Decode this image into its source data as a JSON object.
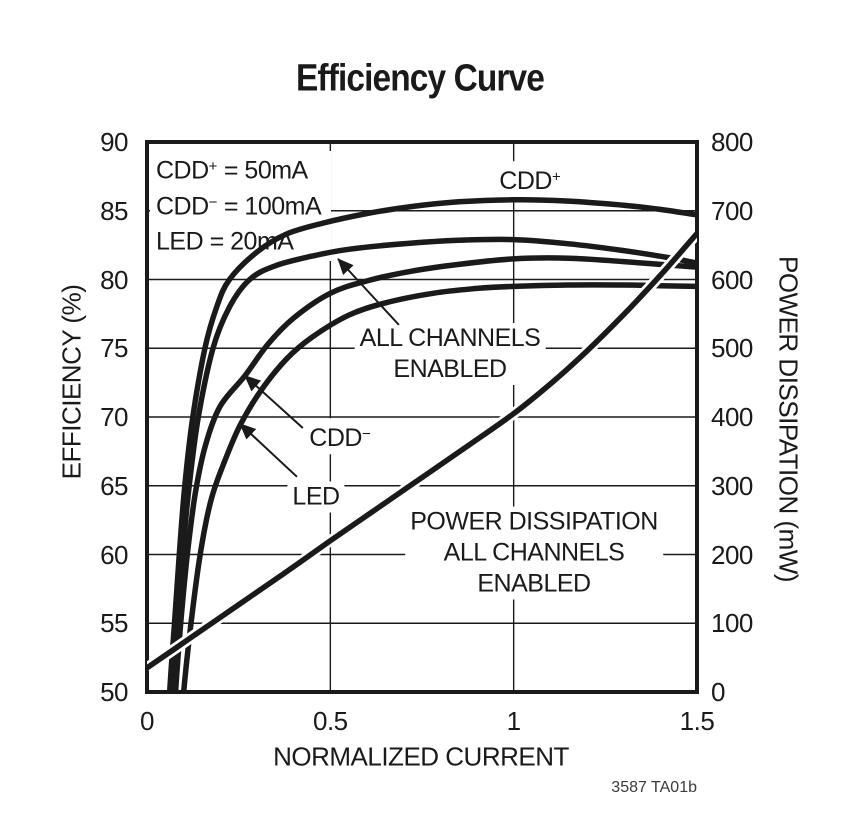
{
  "title": "Efficiency Curve",
  "footnote": "3587 TA01b",
  "colors": {
    "ink": "#1a1a1a",
    "background": "#ffffff"
  },
  "conditions": [
    {
      "base": "CDD",
      "sup": "+",
      "rest": " = 50mA"
    },
    {
      "base": "CDD",
      "sup": "−",
      "rest": " = 100mA"
    },
    {
      "base": "LED",
      "sup": "",
      "rest": " = 20mA"
    }
  ],
  "axes": {
    "x": {
      "title": "NORMALIZED CURRENT",
      "tick_labels": [
        "0",
        "0.5",
        "1",
        "1.5"
      ],
      "tick_values": [
        0,
        0.5,
        1,
        1.5
      ],
      "gridlines": [
        0.5,
        1
      ]
    },
    "y_left": {
      "title": "EFFICIENCY (%)",
      "tick_labels": [
        "90",
        "85",
        "80",
        "75",
        "70",
        "65",
        "60",
        "55",
        "50"
      ]
    },
    "y_right": {
      "title": "POWER DISSIPATION (mW)",
      "tick_labels": [
        "800",
        "700",
        "600",
        "500",
        "400",
        "300",
        "200",
        "100",
        "0"
      ]
    }
  },
  "curve_labels": {
    "cdd_plus": {
      "base": "CDD",
      "sup": "+"
    },
    "cdd_minus": {
      "base": "CDD",
      "sup": "−"
    },
    "led": "LED",
    "all_channels": [
      "ALL CHANNELS",
      "ENABLED"
    ],
    "power": [
      "POWER DISSIPATION",
      "ALL CHANNELS",
      "ENABLED"
    ]
  },
  "chart_data": {
    "type": "line",
    "title": "Efficiency Curve",
    "xlabel": "NORMALIZED CURRENT",
    "xlim": [
      0,
      1.5
    ],
    "ylabel_left": "EFFICIENCY (%)",
    "ylim_left": [
      50,
      90
    ],
    "y_left_gridline_step": 5,
    "ylabel_right": "POWER DISSIPATION (mW)",
    "ylim_right": [
      0,
      800
    ],
    "grid": true,
    "legend": "inline-annotations",
    "series": [
      {
        "name": "CDD+",
        "axis": "left",
        "unit": "%",
        "plunges_below_min": true,
        "points": [
          [
            0.062,
            50
          ],
          [
            0.075,
            55
          ],
          [
            0.088,
            60
          ],
          [
            0.103,
            65
          ],
          [
            0.125,
            70
          ],
          [
            0.158,
            75
          ],
          [
            0.19,
            78
          ],
          [
            0.225,
            80
          ],
          [
            0.3,
            82
          ],
          [
            0.38,
            83.3
          ],
          [
            0.48,
            84.1
          ],
          [
            0.6,
            84.8
          ],
          [
            0.72,
            85.3
          ],
          [
            0.85,
            85.65
          ],
          [
            1.0,
            85.8
          ],
          [
            1.15,
            85.7
          ],
          [
            1.3,
            85.4
          ],
          [
            1.4,
            85.1
          ],
          [
            1.5,
            84.7
          ]
        ]
      },
      {
        "name": "ALL CHANNELS ENABLED",
        "axis": "left",
        "unit": "%",
        "plunges_below_min": true,
        "points": [
          [
            0.068,
            50
          ],
          [
            0.082,
            55
          ],
          [
            0.097,
            60
          ],
          [
            0.115,
            65
          ],
          [
            0.14,
            70
          ],
          [
            0.18,
            75
          ],
          [
            0.225,
            78
          ],
          [
            0.28,
            80
          ],
          [
            0.35,
            81
          ],
          [
            0.45,
            81.7
          ],
          [
            0.55,
            82.2
          ],
          [
            0.7,
            82.6
          ],
          [
            0.85,
            82.85
          ],
          [
            1.0,
            82.9
          ],
          [
            1.15,
            82.6
          ],
          [
            1.3,
            82.1
          ],
          [
            1.42,
            81.6
          ],
          [
            1.5,
            81.2
          ]
        ]
      },
      {
        "name": "CDD−",
        "axis": "left",
        "unit": "%",
        "plunges_below_min": true,
        "points": [
          [
            0.078,
            50
          ],
          [
            0.092,
            55
          ],
          [
            0.11,
            60
          ],
          [
            0.132,
            64.5
          ],
          [
            0.16,
            68
          ],
          [
            0.2,
            70.8
          ],
          [
            0.267,
            73
          ],
          [
            0.33,
            75.3
          ],
          [
            0.4,
            77.2
          ],
          [
            0.5,
            79
          ],
          [
            0.6,
            79.9
          ],
          [
            0.72,
            80.6
          ],
          [
            0.85,
            81.1
          ],
          [
            1.0,
            81.5
          ],
          [
            1.15,
            81.55
          ],
          [
            1.3,
            81.3
          ],
          [
            1.4,
            81.1
          ],
          [
            1.5,
            80.9
          ]
        ]
      },
      {
        "name": "LED",
        "axis": "left",
        "unit": "%",
        "plunges_below_min": true,
        "points": [
          [
            0.1,
            50
          ],
          [
            0.12,
            55
          ],
          [
            0.145,
            60
          ],
          [
            0.175,
            64
          ],
          [
            0.215,
            67
          ],
          [
            0.254,
            69.4
          ],
          [
            0.31,
            71.9
          ],
          [
            0.38,
            74.2
          ],
          [
            0.45,
            75.8
          ],
          [
            0.55,
            77.4
          ],
          [
            0.65,
            78.3
          ],
          [
            0.78,
            79
          ],
          [
            0.9,
            79.35
          ],
          [
            1.0,
            79.5
          ],
          [
            1.15,
            79.6
          ],
          [
            1.3,
            79.6
          ],
          [
            1.4,
            79.55
          ],
          [
            1.5,
            79.5
          ]
        ]
      },
      {
        "name": "POWER DISSIPATION ALL CHANNELS ENABLED",
        "axis": "right",
        "unit": "mW",
        "plunges_below_min": false,
        "halo": true,
        "points": [
          [
            0,
            35
          ],
          [
            0.125,
            81
          ],
          [
            0.25,
            127
          ],
          [
            0.375,
            173
          ],
          [
            0.5,
            220
          ],
          [
            0.625,
            266
          ],
          [
            0.75,
            312
          ],
          [
            0.875,
            358
          ],
          [
            1.0,
            405
          ],
          [
            1.1,
            448
          ],
          [
            1.2,
            496
          ],
          [
            1.3,
            549
          ],
          [
            1.4,
            606
          ],
          [
            1.5,
            667
          ]
        ]
      }
    ],
    "arrows": [
      {
        "label": "ALL CHANNELS ENABLED",
        "from": [
          0.687,
          76.7
        ],
        "to": [
          0.521,
          81.5
        ]
      },
      {
        "label": "CDD−",
        "from": [
          0.425,
          69.2
        ],
        "to": [
          0.267,
          73.0
        ]
      },
      {
        "label": "LED",
        "from": [
          0.409,
          65.65
        ],
        "to": [
          0.254,
          69.5
        ]
      }
    ]
  }
}
